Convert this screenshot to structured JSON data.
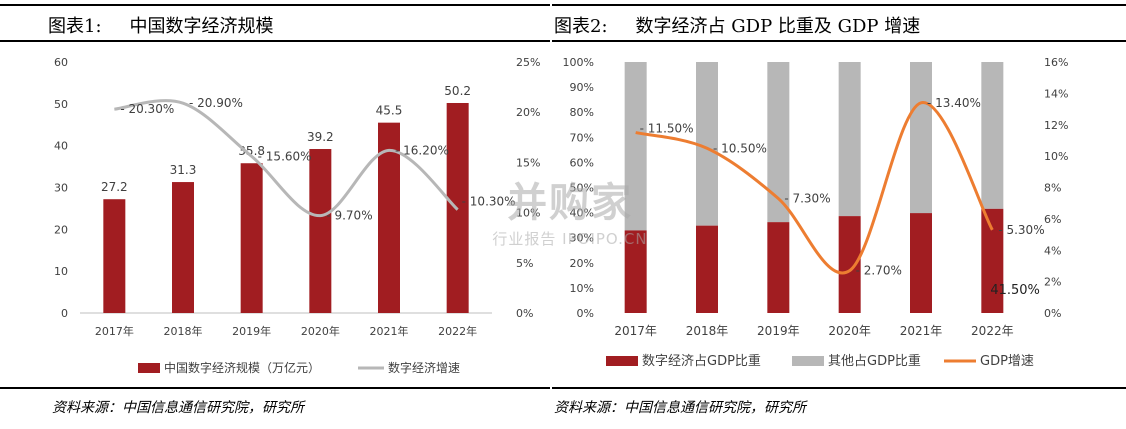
{
  "watermark": {
    "brand": "并购家",
    "tagline": "行业报告 IPOIPO.CN"
  },
  "chart_data": [
    {
      "id": "fig1",
      "type": "bar+line",
      "label": "图表1:",
      "title": "中国数字经济规模",
      "source": "资料来源：中国信息通信研究院，研究所",
      "categories": [
        "2017年",
        "2018年",
        "2019年",
        "2020年",
        "2021年",
        "2022年"
      ],
      "left_axis": {
        "min": 0,
        "max": 60,
        "ticks": [
          "0",
          "10",
          "20",
          "30",
          "40",
          "50",
          "60"
        ]
      },
      "right_axis": {
        "min": 0,
        "max": 25,
        "ticks": [
          "0%",
          "5%",
          "10%",
          "15%",
          "20%",
          "25%"
        ]
      },
      "series": [
        {
          "name": "中国数字经济规模（万亿元）",
          "type": "bar",
          "axis": "left",
          "color": "#a11d21",
          "values": [
            27.2,
            31.3,
            35.8,
            39.2,
            45.5,
            50.2
          ],
          "labels": [
            "27.2",
            "31.3",
            "35.8",
            "39.2",
            "45.5",
            "50.2"
          ]
        },
        {
          "name": "数字经济增速",
          "type": "line",
          "axis": "right",
          "color": "#b7b7b7",
          "values": [
            20.3,
            20.9,
            15.6,
            9.7,
            16.2,
            10.3
          ],
          "labels": [
            "20.30%",
            "20.90%",
            "15.60%",
            "9.70%",
            "16.20%",
            "10.30%"
          ]
        }
      ]
    },
    {
      "id": "fig2",
      "type": "stacked-bar+line",
      "label": "图表2:",
      "title": "数字经济占 GDP 比重及 GDP 增速",
      "source": "资料来源：中国信息通信研究院，研究所",
      "categories": [
        "2017年",
        "2018年",
        "2019年",
        "2020年",
        "2021年",
        "2022年"
      ],
      "left_axis": {
        "min": 0,
        "max": 100,
        "ticks": [
          "0%",
          "10%",
          "20%",
          "30%",
          "40%",
          "50%",
          "60%",
          "70%",
          "80%",
          "90%",
          "100%"
        ]
      },
      "right_axis": {
        "min": 0,
        "max": 16,
        "ticks": [
          "0%",
          "2%",
          "4%",
          "6%",
          "8%",
          "10%",
          "12%",
          "14%",
          "16%"
        ]
      },
      "series": [
        {
          "name": "数字经济占GDP比重",
          "type": "bar",
          "axis": "left",
          "color": "#a11d21",
          "values": [
            32.9,
            34.8,
            36.2,
            38.6,
            39.8,
            41.5
          ],
          "labels": [
            "",
            "",
            "",
            "",
            "",
            "41.50%"
          ]
        },
        {
          "name": "其他占GDP比重",
          "type": "bar",
          "axis": "left",
          "color": "#b7b7b7",
          "values": [
            67.1,
            65.2,
            63.8,
            61.4,
            60.2,
            58.5
          ]
        },
        {
          "name": "GDP增速",
          "type": "line",
          "axis": "right",
          "color": "#ed7d31",
          "values": [
            11.5,
            10.5,
            7.3,
            2.7,
            13.4,
            5.3
          ],
          "labels": [
            "11.50%",
            "10.50%",
            "7.30%",
            "2.70%",
            "13.40%",
            "5.30%"
          ]
        }
      ]
    }
  ]
}
